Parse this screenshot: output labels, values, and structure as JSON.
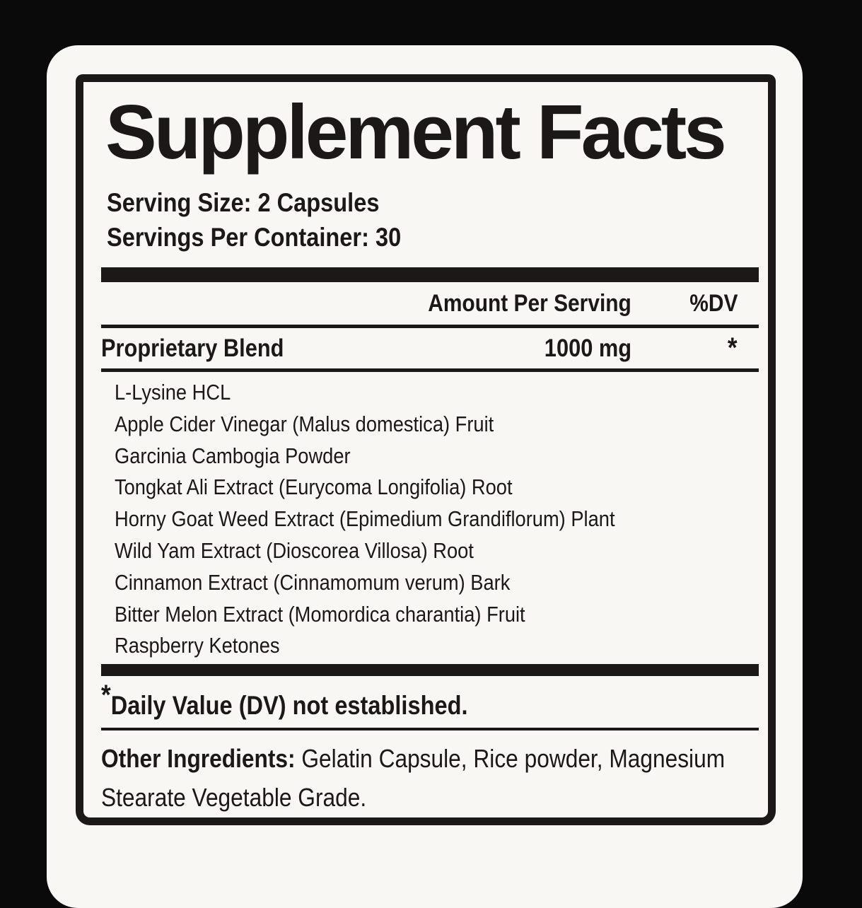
{
  "label": {
    "title": "Supplement Facts",
    "serving_size": "Serving Size: 2 Capsules",
    "servings_per_container": "Servings Per Container: 30",
    "table": {
      "amount_header": "Amount Per Serving",
      "dv_header": "%DV",
      "blend_name": "Proprietary Blend",
      "blend_amount": "1000 mg",
      "blend_dv": "*",
      "ingredients": [
        "L-Lysine HCL",
        "Apple Cider Vinegar (Malus domestica) Fruit",
        "Garcinia Cambogia Powder",
        "Tongkat Ali Extract (Eurycoma Longifolia) Root",
        "Horny Goat Weed Extract (Epimedium Grandiflorum) Plant",
        "Wild Yam Extract (Dioscorea Villosa) Root",
        "Cinnamon Extract (Cinnamomum verum) Bark",
        "Bitter Melon Extract (Momordica charantia) Fruit",
        "Raspberry Ketones"
      ]
    },
    "footnote": {
      "asterisk": "*",
      "text": "Daily Value (DV) not established."
    },
    "other_ingredients": {
      "label": "Other Ingredients:",
      "text": " Gelatin Capsule, Rice powder, Magnesium Stearate Vegetable Grade."
    }
  },
  "colors": {
    "page_background": "#0a0a0a",
    "card_background": "#f8f7f4",
    "ink": "#1b1817"
  }
}
